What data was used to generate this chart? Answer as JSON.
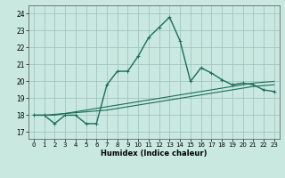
{
  "title": "",
  "xlabel": "Humidex (Indice chaleur)",
  "ylabel": "",
  "xlim": [
    -0.5,
    23.5
  ],
  "ylim": [
    16.6,
    24.5
  ],
  "yticks": [
    17,
    18,
    19,
    20,
    21,
    22,
    23,
    24
  ],
  "xticks": [
    0,
    1,
    2,
    3,
    4,
    5,
    6,
    7,
    8,
    9,
    10,
    11,
    12,
    13,
    14,
    15,
    16,
    17,
    18,
    19,
    20,
    21,
    22,
    23
  ],
  "bg_color": "#c8e8e0",
  "grid_color": "#9dbfb8",
  "line_color": "#1a6e5a",
  "line1_x": [
    0,
    1,
    2,
    3,
    4,
    5,
    6,
    7,
    8,
    9,
    10,
    11,
    12,
    13,
    14,
    15,
    16,
    17,
    18,
    19,
    20,
    21,
    22,
    23
  ],
  "line1_y": [
    18.0,
    18.0,
    17.5,
    18.0,
    18.0,
    17.5,
    17.5,
    19.8,
    20.6,
    20.6,
    21.5,
    22.6,
    23.2,
    23.8,
    22.4,
    20.0,
    20.8,
    20.5,
    20.1,
    19.8,
    19.9,
    19.8,
    19.5,
    19.4
  ],
  "line2_x": [
    0,
    1,
    2,
    3,
    4,
    5,
    6,
    7,
    8,
    9,
    10,
    11,
    12,
    13,
    14,
    15,
    16,
    17,
    18,
    19,
    20,
    21,
    22,
    23
  ],
  "line2_y": [
    18.0,
    18.0,
    18.0,
    18.1,
    18.2,
    18.3,
    18.4,
    18.5,
    18.6,
    18.7,
    18.8,
    18.9,
    19.0,
    19.1,
    19.2,
    19.3,
    19.4,
    19.5,
    19.6,
    19.7,
    19.8,
    19.9,
    19.95,
    20.0
  ],
  "line3_x": [
    0,
    1,
    2,
    3,
    4,
    5,
    6,
    7,
    8,
    9,
    10,
    11,
    12,
    13,
    14,
    15,
    16,
    17,
    18,
    19,
    20,
    21,
    22,
    23
  ],
  "line3_y": [
    18.0,
    18.0,
    18.05,
    18.1,
    18.15,
    18.2,
    18.25,
    18.3,
    18.4,
    18.5,
    18.6,
    18.7,
    18.8,
    18.9,
    19.0,
    19.1,
    19.2,
    19.3,
    19.4,
    19.5,
    19.6,
    19.7,
    19.75,
    19.8
  ],
  "xlabel_fontsize": 6.0,
  "tick_fontsize": 5.0,
  "lw_main": 1.0,
  "lw_trend": 0.8
}
